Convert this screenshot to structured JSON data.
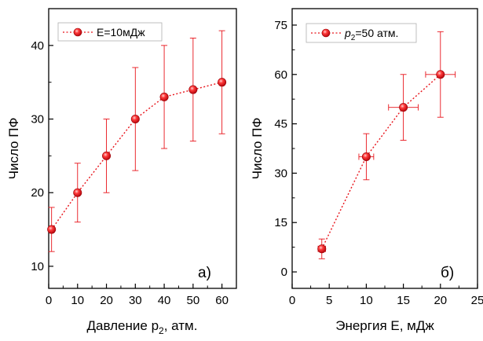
{
  "chart_data": [
    {
      "type": "line",
      "panel_label": "а)",
      "xlabel": {
        "main": "Давление p",
        "sub": "2",
        "suffix": ", атм."
      },
      "ylabel": "Число ПФ",
      "xlim": [
        0,
        65
      ],
      "ylim": [
        7,
        45
      ],
      "xticks": [
        0,
        10,
        20,
        30,
        40,
        50,
        60
      ],
      "yticks": [
        10,
        20,
        30,
        40
      ],
      "grid": false,
      "legend_position": "top-left",
      "color": "#e8141b",
      "series": [
        {
          "legend": {
            "text": "E=10мДж"
          },
          "x": [
            1,
            10,
            20,
            30,
            40,
            50,
            60
          ],
          "y": [
            15,
            20,
            25,
            30,
            33,
            34,
            35
          ],
          "y_err_low": [
            12,
            16,
            20,
            23,
            26,
            27,
            28
          ],
          "y_err_high": [
            18,
            24,
            30,
            37,
            40,
            41,
            42
          ]
        }
      ]
    },
    {
      "type": "line",
      "panel_label": "б)",
      "xlabel": {
        "main": "Энергия E, мДж",
        "sub": "",
        "suffix": ""
      },
      "ylabel": "Число ПФ",
      "xlim": [
        0,
        25
      ],
      "ylim": [
        -5,
        80
      ],
      "xticks": [
        0,
        5,
        10,
        15,
        20,
        25
      ],
      "yticks": [
        0,
        15,
        30,
        45,
        60,
        75
      ],
      "grid": false,
      "legend_position": "top-left",
      "color": "#e8141b",
      "series": [
        {
          "legend": {
            "italic": "p",
            "sub": "2",
            "rest": "=50 атм."
          },
          "x": [
            4,
            10,
            15,
            20
          ],
          "y": [
            7,
            35,
            50,
            60
          ],
          "y_err_low": [
            4,
            28,
            40,
            47
          ],
          "y_err_high": [
            10,
            42,
            60,
            73
          ],
          "x_err_low": [
            3.5,
            9,
            13,
            18
          ],
          "x_err_high": [
            4.5,
            11,
            17,
            22
          ]
        }
      ]
    }
  ]
}
